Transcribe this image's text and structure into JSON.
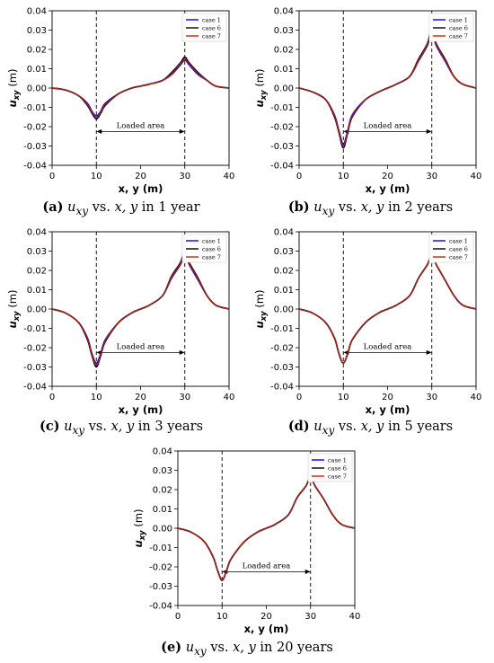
{
  "colors": {
    "case1": "#0000ff",
    "case6": "#000000",
    "case7": "#cc2200",
    "axis": "#000000"
  },
  "caption_parts": {
    "vs": "vs.",
    "in": "in"
  },
  "chart_data": [
    {
      "id": "a",
      "type": "line",
      "caption_label": "(a)",
      "caption_x": "x, y",
      "caption_y": "u",
      "caption_y_sub": "xy",
      "caption_time": "1 year",
      "xlabel": "x, y (m)",
      "ylabel": "u",
      "ylabel_sub": "xy",
      "ylabel_unit": "(m)",
      "xlim": [
        0,
        40
      ],
      "ylim": [
        -0.04,
        0.04
      ],
      "xticks": [
        "0",
        "10",
        "20",
        "30",
        "40"
      ],
      "yticks": [
        "-0.04",
        "-0.03",
        "-0.02",
        "-0.01",
        "0.00",
        "0.01",
        "0.02",
        "0.03",
        "0.04"
      ],
      "legend_position": "top-right",
      "vlines": [
        10,
        30
      ],
      "annotation": {
        "text": "Loaded area",
        "from": 10,
        "to": 30,
        "y": -0.0225
      },
      "series": [
        {
          "name": "case 1",
          "x": [
            0,
            3,
            6,
            8,
            9,
            10,
            11,
            12,
            15,
            18,
            20,
            22,
            25,
            27,
            29,
            30,
            31,
            33,
            35,
            37,
            40
          ],
          "y": [
            0,
            -0.001,
            -0.004,
            -0.008,
            -0.012,
            -0.0145,
            -0.012,
            -0.008,
            -0.003,
            0,
            0.001,
            0.002,
            0.004,
            0.007,
            0.012,
            0.0145,
            0.012,
            0.007,
            0.004,
            0.001,
            0
          ]
        },
        {
          "name": "case 6",
          "x": [
            0,
            3,
            6,
            8,
            9,
            10,
            11,
            12,
            15,
            18,
            20,
            22,
            25,
            27,
            29,
            30,
            31,
            33,
            35,
            37,
            40
          ],
          "y": [
            0,
            -0.001,
            -0.004,
            -0.009,
            -0.013,
            -0.016,
            -0.013,
            -0.009,
            -0.003,
            0,
            0.001,
            0.002,
            0.004,
            0.008,
            0.013,
            0.016,
            0.013,
            0.008,
            0.004,
            0.001,
            0
          ]
        },
        {
          "name": "case 7",
          "x": [
            0,
            3,
            6,
            8,
            9,
            10,
            11,
            12,
            15,
            18,
            20,
            22,
            25,
            27,
            29,
            30,
            31,
            33,
            35,
            37,
            40
          ],
          "y": [
            0,
            -0.001,
            -0.004,
            -0.0085,
            -0.0125,
            -0.015,
            -0.0125,
            -0.0085,
            -0.003,
            0,
            0.001,
            0.002,
            0.004,
            0.0075,
            0.0125,
            0.015,
            0.0125,
            0.0075,
            0.004,
            0.001,
            0
          ]
        }
      ]
    },
    {
      "id": "b",
      "type": "line",
      "caption_label": "(b)",
      "caption_x": "x, y",
      "caption_y": "u",
      "caption_y_sub": "xy",
      "caption_time": "2 years",
      "xlabel": "x, y (m)",
      "ylabel": "u",
      "ylabel_sub": "xy",
      "ylabel_unit": "(m)",
      "xlim": [
        0,
        40
      ],
      "ylim": [
        -0.04,
        0.04
      ],
      "xticks": [
        "0",
        "10",
        "20",
        "30",
        "40"
      ],
      "yticks": [
        "-0.04",
        "-0.03",
        "-0.02",
        "-0.01",
        "0.00",
        "0.01",
        "0.02",
        "0.03",
        "0.04"
      ],
      "legend_position": "top-right",
      "vlines": [
        10,
        30
      ],
      "annotation": {
        "text": "Loaded area",
        "from": 10,
        "to": 30,
        "y": -0.0225
      },
      "series": [
        {
          "name": "case 1",
          "x": [
            0,
            3,
            6,
            8,
            9,
            10,
            11,
            12,
            15,
            18,
            20,
            22,
            25,
            27,
            29,
            30,
            31,
            33,
            35,
            37,
            40
          ],
          "y": [
            0,
            -0.002,
            -0.006,
            -0.014,
            -0.022,
            -0.029,
            -0.022,
            -0.014,
            -0.006,
            -0.002,
            0,
            0.002,
            0.006,
            0.014,
            0.022,
            0.029,
            0.022,
            0.014,
            0.006,
            0.002,
            0
          ]
        },
        {
          "name": "case 6",
          "x": [
            0,
            3,
            6,
            8,
            9,
            10,
            11,
            12,
            15,
            18,
            20,
            22,
            25,
            27,
            29,
            30,
            31,
            33,
            35,
            37,
            40
          ],
          "y": [
            0,
            -0.002,
            -0.006,
            -0.015,
            -0.023,
            -0.031,
            -0.023,
            -0.015,
            -0.006,
            -0.002,
            0,
            0.002,
            0.006,
            0.015,
            0.023,
            0.031,
            0.023,
            0.015,
            0.006,
            0.002,
            0
          ]
        },
        {
          "name": "case 7",
          "x": [
            0,
            3,
            6,
            8,
            9,
            10,
            11,
            12,
            15,
            18,
            20,
            22,
            25,
            27,
            29,
            30,
            31,
            33,
            35,
            37,
            40
          ],
          "y": [
            0,
            -0.002,
            -0.006,
            -0.0145,
            -0.0225,
            -0.03,
            -0.0225,
            -0.0145,
            -0.006,
            -0.002,
            0,
            0.002,
            0.006,
            0.0145,
            0.0225,
            0.03,
            0.0225,
            0.0145,
            0.006,
            0.002,
            0
          ]
        }
      ]
    },
    {
      "id": "c",
      "type": "line",
      "caption_label": "(c)",
      "caption_x": "x, y",
      "caption_y": "u",
      "caption_y_sub": "xy",
      "caption_time": "3 years",
      "xlabel": "x, y (m)",
      "ylabel": "u",
      "ylabel_sub": "xy",
      "ylabel_unit": "(m)",
      "xlim": [
        0,
        40
      ],
      "ylim": [
        -0.04,
        0.04
      ],
      "xticks": [
        "0",
        "10",
        "20",
        "30",
        "40"
      ],
      "yticks": [
        "-0.04",
        "-0.03",
        "-0.02",
        "-0.01",
        "0.00",
        "0.01",
        "0.02",
        "0.03",
        "0.04"
      ],
      "legend_position": "top-right",
      "vlines": [
        10,
        30
      ],
      "annotation": {
        "text": "Loaded area",
        "from": 10,
        "to": 30,
        "y": -0.0225
      },
      "series": [
        {
          "name": "case 1",
          "x": [
            0,
            3,
            6,
            8,
            9,
            10,
            11,
            12,
            15,
            18,
            20,
            22,
            25,
            27,
            29,
            30,
            31,
            33,
            35,
            37,
            40
          ],
          "y": [
            0,
            -0.002,
            -0.007,
            -0.015,
            -0.023,
            -0.028,
            -0.023,
            -0.016,
            -0.007,
            -0.002,
            0,
            0.002,
            0.007,
            0.016,
            0.023,
            0.028,
            0.023,
            0.015,
            0.007,
            0.002,
            0
          ]
        },
        {
          "name": "case 6",
          "x": [
            0,
            3,
            6,
            8,
            9,
            10,
            11,
            12,
            15,
            18,
            20,
            22,
            25,
            27,
            29,
            30,
            31,
            33,
            35,
            37,
            40
          ],
          "y": [
            0,
            -0.002,
            -0.007,
            -0.016,
            -0.024,
            -0.03,
            -0.024,
            -0.017,
            -0.007,
            -0.002,
            0,
            0.002,
            0.007,
            0.017,
            0.024,
            0.03,
            0.024,
            0.016,
            0.007,
            0.002,
            0
          ]
        },
        {
          "name": "case 7",
          "x": [
            0,
            3,
            6,
            8,
            9,
            10,
            11,
            12,
            15,
            18,
            20,
            22,
            25,
            27,
            29,
            30,
            31,
            33,
            35,
            37,
            40
          ],
          "y": [
            0,
            -0.002,
            -0.007,
            -0.0155,
            -0.0235,
            -0.029,
            -0.0235,
            -0.0165,
            -0.007,
            -0.002,
            0,
            0.002,
            0.007,
            0.0165,
            0.0235,
            0.029,
            0.0235,
            0.0155,
            0.007,
            0.002,
            0
          ]
        }
      ]
    },
    {
      "id": "d",
      "type": "line",
      "caption_label": "(d)",
      "caption_x": "x, y",
      "caption_y": "u",
      "caption_y_sub": "xy",
      "caption_time": "5 years",
      "xlabel": "x, y (m)",
      "ylabel": "u",
      "ylabel_sub": "xy",
      "ylabel_unit": "(m)",
      "xlim": [
        0,
        40
      ],
      "ylim": [
        -0.04,
        0.04
      ],
      "xticks": [
        "0",
        "10",
        "20",
        "30",
        "40"
      ],
      "yticks": [
        "-0.04",
        "-0.03",
        "-0.02",
        "-0.01",
        "0.00",
        "0.01",
        "0.02",
        "0.03",
        "0.04"
      ],
      "legend_position": "top-right",
      "vlines": [
        10,
        30
      ],
      "annotation": {
        "text": "Loaded area",
        "from": 10,
        "to": 30,
        "y": -0.0225
      },
      "series": [
        {
          "name": "case 1",
          "x": [
            0,
            3,
            6,
            8,
            9,
            10,
            11,
            12,
            15,
            18,
            20,
            22,
            25,
            27,
            29,
            30,
            31,
            33,
            35,
            37,
            40
          ],
          "y": [
            0,
            -0.002,
            -0.007,
            -0.015,
            -0.023,
            -0.028,
            -0.023,
            -0.016,
            -0.007,
            -0.002,
            0,
            0.002,
            0.007,
            0.016,
            0.023,
            0.028,
            0.023,
            0.015,
            0.007,
            0.002,
            0
          ]
        },
        {
          "name": "case 6",
          "x": [
            0,
            3,
            6,
            8,
            9,
            10,
            11,
            12,
            15,
            18,
            20,
            22,
            25,
            27,
            29,
            30,
            31,
            33,
            35,
            37,
            40
          ],
          "y": [
            0,
            -0.002,
            -0.007,
            -0.015,
            -0.023,
            -0.028,
            -0.023,
            -0.016,
            -0.007,
            -0.002,
            0,
            0.002,
            0.007,
            0.016,
            0.023,
            0.028,
            0.023,
            0.015,
            0.007,
            0.002,
            0
          ]
        },
        {
          "name": "case 7",
          "x": [
            0,
            3,
            6,
            8,
            9,
            10,
            11,
            12,
            15,
            18,
            20,
            22,
            25,
            27,
            29,
            30,
            31,
            33,
            35,
            37,
            40
          ],
          "y": [
            0,
            -0.002,
            -0.007,
            -0.015,
            -0.023,
            -0.028,
            -0.023,
            -0.016,
            -0.007,
            -0.002,
            0,
            0.002,
            0.007,
            0.016,
            0.023,
            0.028,
            0.023,
            0.015,
            0.007,
            0.002,
            0
          ]
        }
      ]
    },
    {
      "id": "e",
      "type": "line",
      "caption_label": "(e)",
      "caption_x": "x, y",
      "caption_y": "u",
      "caption_y_sub": "xy",
      "caption_time": "20 years",
      "xlabel": "x, y (m)",
      "ylabel": "u",
      "ylabel_sub": "xy",
      "ylabel_unit": "(m)",
      "xlim": [
        0,
        40
      ],
      "ylim": [
        -0.04,
        0.04
      ],
      "xticks": [
        "0",
        "10",
        "20",
        "30",
        "40"
      ],
      "yticks": [
        "-0.04",
        "-0.03",
        "-0.02",
        "-0.01",
        "0.00",
        "0.01",
        "0.02",
        "0.03",
        "0.04"
      ],
      "legend_position": "top-right",
      "vlines": [
        10,
        30
      ],
      "annotation": {
        "text": "Loaded area",
        "from": 10,
        "to": 30,
        "y": -0.0225
      },
      "series": [
        {
          "name": "case 1",
          "x": [
            0,
            3,
            6,
            8,
            9,
            10,
            11,
            12,
            15,
            18,
            20,
            22,
            25,
            27,
            29,
            30,
            31,
            33,
            35,
            37,
            40
          ],
          "y": [
            0,
            -0.002,
            -0.007,
            -0.015,
            -0.022,
            -0.027,
            -0.022,
            -0.016,
            -0.007,
            -0.002,
            0,
            0.002,
            0.007,
            0.016,
            0.022,
            0.027,
            0.022,
            0.015,
            0.007,
            0.002,
            0
          ]
        },
        {
          "name": "case 6",
          "x": [
            0,
            3,
            6,
            8,
            9,
            10,
            11,
            12,
            15,
            18,
            20,
            22,
            25,
            27,
            29,
            30,
            31,
            33,
            35,
            37,
            40
          ],
          "y": [
            0,
            -0.002,
            -0.007,
            -0.015,
            -0.022,
            -0.027,
            -0.022,
            -0.016,
            -0.007,
            -0.002,
            0,
            0.002,
            0.007,
            0.016,
            0.022,
            0.027,
            0.022,
            0.015,
            0.007,
            0.002,
            0
          ]
        },
        {
          "name": "case 7",
          "x": [
            0,
            3,
            6,
            8,
            9,
            10,
            11,
            12,
            15,
            18,
            20,
            22,
            25,
            27,
            29,
            30,
            31,
            33,
            35,
            37,
            40
          ],
          "y": [
            0,
            -0.002,
            -0.007,
            -0.015,
            -0.022,
            -0.027,
            -0.022,
            -0.016,
            -0.007,
            -0.002,
            0,
            0.002,
            0.007,
            0.016,
            0.022,
            0.027,
            0.022,
            0.015,
            0.007,
            0.002,
            0
          ]
        }
      ]
    }
  ]
}
